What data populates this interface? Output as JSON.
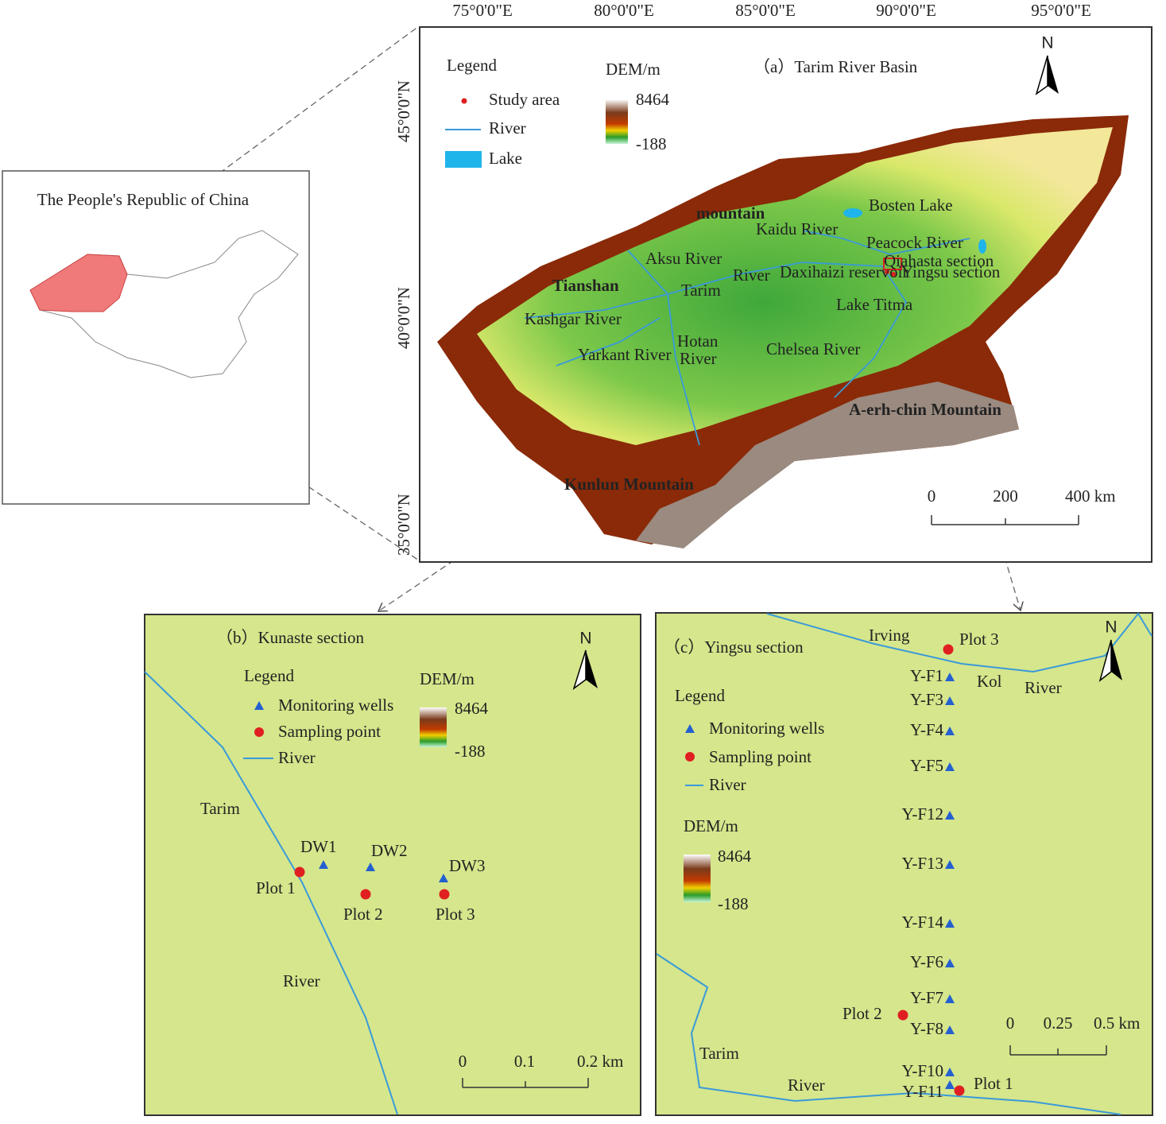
{
  "inset": {
    "title": "The People's Republic of China"
  },
  "panel_a": {
    "title": "（a）Tarim River Basin",
    "longitudes": [
      "75°0'0\"E",
      "80°0'0\"E",
      "85°0'0\"E",
      "90°0'0\"E",
      "95°0'0\"E"
    ],
    "latitudes": [
      "45°0'0\"N",
      "40°0'0\"N",
      "35°0'0\"N"
    ],
    "north": "N",
    "legend": {
      "title": "Legend",
      "items": [
        "Study area",
        "River",
        "Lake"
      ]
    },
    "dem": {
      "title": "DEM/m",
      "max": 8464,
      "min": -188
    },
    "places": [
      "mountain",
      "Tianshan",
      "Kashgar River",
      "Aksu River",
      "Tarim",
      "River",
      "Kaidu River",
      "Bosten Lake",
      "Peacock River",
      "Qiahasta section",
      "Yingsu section",
      "Daxihaizi reservoir",
      "Lake Titma",
      "Yarkant River",
      "Hotan",
      "River",
      "Chelsea River",
      "A-erh-chin Mountain",
      "Kunlun Mountain"
    ],
    "scale": [
      "0",
      "200",
      "400 km"
    ]
  },
  "panel_b": {
    "title": "（b）Kunaste section",
    "north": "N",
    "legend": {
      "title": "Legend",
      "items": [
        "Monitoring wells",
        "Sampling point",
        "River"
      ]
    },
    "dem": {
      "title": "DEM/m",
      "max": 8464,
      "min": -188
    },
    "places": [
      "Tarim",
      "River"
    ],
    "wells": [
      "DW1",
      "DW2",
      "DW3"
    ],
    "plots": [
      "Plot 1",
      "Plot 2",
      "Plot 3"
    ],
    "scale": [
      "0",
      "0.1",
      "0.2 km"
    ]
  },
  "panel_c": {
    "title": "（c）Yingsu section",
    "north": "N",
    "legend": {
      "title": "Legend",
      "items": [
        "Monitoring wells",
        "Sampling point",
        "River"
      ]
    },
    "dem": {
      "title": "DEM/m",
      "max": 8464,
      "min": -188
    },
    "places": [
      "Irving",
      "Kol",
      "River",
      "Tarim",
      "River"
    ],
    "wells": [
      "Y-F1",
      "Y-F3",
      "Y-F4",
      "Y-F5",
      "Y-F12",
      "Y-F13",
      "Y-F14",
      "Y-F6",
      "Y-F7",
      "Y-F8",
      "Y-F10",
      "Y-F11"
    ],
    "plots": [
      "Plot 3",
      "Plot 2",
      "Plot 1"
    ],
    "scale": [
      "0",
      "0.25",
      "0.5 km"
    ]
  }
}
